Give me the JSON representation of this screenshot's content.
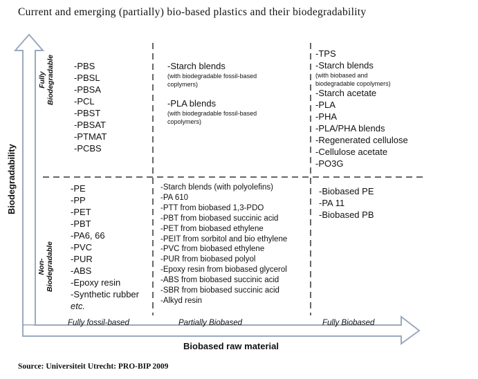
{
  "title": "Current and emerging (partially) bio-based plastics and their biodegradability",
  "source": "Source: Universiteit Utrecht: PRO-BIP 2009",
  "y_axis": {
    "label": "Biodegradability",
    "top": [
      "Fully",
      "Biodegradable"
    ],
    "bottom": [
      "Non-",
      "Biodegradable"
    ]
  },
  "x_axis": {
    "label": "Biobased raw material",
    "categories": [
      "Fully fossil-based",
      "Partially  Biobased",
      "Fully Biobased"
    ]
  },
  "cells": {
    "top_fossil": [
      "-PBS",
      "-PBSL",
      "-PBSA",
      "-PCL",
      "-PBST",
      "-PBSAT",
      "-PTMAT",
      "-PCBS"
    ],
    "top_partial": [
      {
        "text": "-Starch blends",
        "note": [
          "(with biodegradable fossil-based",
          "coplymers)"
        ]
      },
      {
        "text": "-PLA blends",
        "note": [
          "(with biodegradable fossil-based",
          "copolymers)"
        ]
      }
    ],
    "top_bio": [
      {
        "text": "-TPS"
      },
      {
        "text": "-Starch blends",
        "note": [
          "(with biobased and",
          "biodegradable copolymers)"
        ]
      },
      {
        "text": "-Starch acetate"
      },
      {
        "text": "-PLA"
      },
      {
        "text": "-PHA"
      },
      {
        "text": "-PLA/PHA blends"
      },
      {
        "text": "-Regenerated cellulose"
      },
      {
        "text": "-Cellulose acetate"
      },
      {
        "text": "-PO3G"
      }
    ],
    "bottom_fossil": [
      "-PE",
      "-PP",
      "-PET",
      "-PBT",
      "-PA6, 66",
      "-PVC",
      "-PUR",
      "-ABS",
      "-Epoxy resin",
      "-Synthetic rubber"
    ],
    "bottom_fossil_etc": "etc.",
    "bottom_partial": [
      "-Starch blends (with polyolefins)",
      "-PA 610",
      "-PTT from biobased 1,3-PDO",
      "-PBT from biobased succinic acid",
      "-PET from biobased ethylene",
      "-PEIT from sorbitol and bio ethylene",
      "-PVC from biobased ethylene",
      "-PUR from biobased polyol",
      "-Epoxy resin from biobased glycerol",
      "-ABS from biobased succinic acid",
      "-SBR from biobased succinic acid",
      "-Alkyd resin"
    ],
    "bottom_bio": [
      "-Biobased PE",
      "-PA 11",
      "-Biobased PB"
    ]
  }
}
